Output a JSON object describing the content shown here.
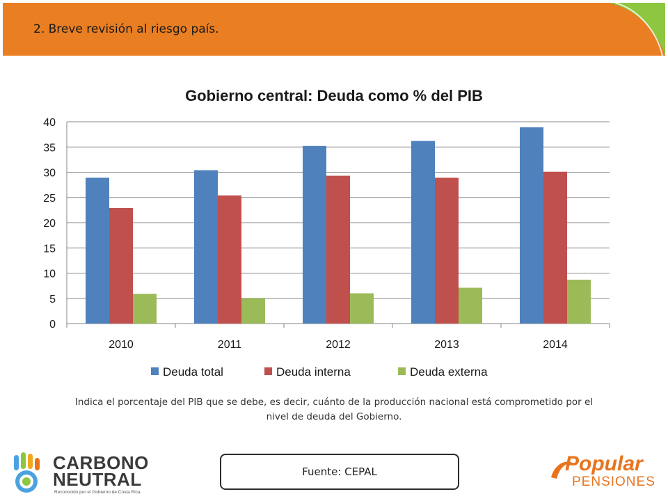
{
  "header": {
    "title": "2. Breve revisión al riesgo país."
  },
  "chart_data": {
    "type": "bar",
    "title": "Gobierno central: Deuda como % del PIB",
    "categories": [
      "2010",
      "2011",
      "2012",
      "2013",
      "2014"
    ],
    "series": [
      {
        "name": "Deuda total",
        "color": "#4f81bd",
        "values": [
          28.9,
          30.4,
          35.2,
          36.2,
          38.9
        ]
      },
      {
        "name": "Deuda interna",
        "color": "#c0504d",
        "values": [
          22.9,
          25.4,
          29.3,
          28.9,
          30.1
        ]
      },
      {
        "name": "Deuda externa",
        "color": "#9bbb59",
        "values": [
          5.9,
          5.0,
          6.0,
          7.1,
          8.7
        ]
      }
    ],
    "yticks": [
      "0",
      "5",
      "10",
      "15",
      "20",
      "25",
      "30",
      "35",
      "40"
    ],
    "ylim": [
      0,
      40
    ],
    "grid": true,
    "legend_position": "bottom"
  },
  "description": "Indica el porcentaje del PIB que se debe, es decir, cuánto de la producción nacional está comprometido por el nivel de deuda del Gobierno.",
  "source": "Fuente: CEPAL",
  "logos": {
    "left": {
      "line1": "CARBONO",
      "line2": "NEUTRAL",
      "small": "Reconocido por el Gobierno de Costa Rica"
    },
    "right": {
      "line1": "Popular",
      "line2": "PENSIONES"
    }
  },
  "colors": {
    "header_orange": "#e97e22",
    "header_green": "#8dc63f"
  }
}
